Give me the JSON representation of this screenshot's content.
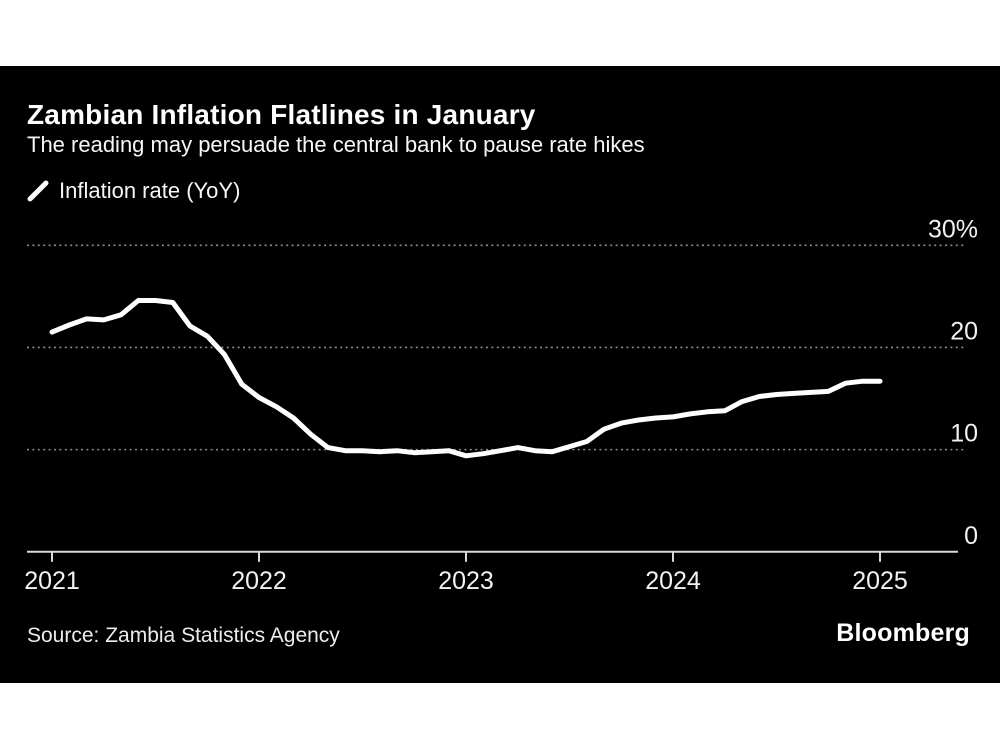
{
  "header": {
    "title": "Zambian Inflation Flatlines in January",
    "subtitle": "The reading may persuade the central bank to pause rate hikes"
  },
  "legend": {
    "marker_icon": "line-series-slash",
    "label": "Inflation rate (YoY)"
  },
  "footer": {
    "source": "Source: Zambia Statistics Agency",
    "brand": "Bloomberg"
  },
  "colors": {
    "page_background": "#ffffff",
    "card_background": "#000000",
    "line": "#ffffff",
    "grid": "#8c8c8c",
    "axis": "#d9d9d9",
    "axis_label": "#f2f2f2",
    "text": "#ffffff"
  },
  "chart_data": {
    "type": "line",
    "title": "Zambian Inflation Flatlines in January",
    "subtitle": "The reading may persuade the central bank to pause rate hikes",
    "series": [
      {
        "name": "Inflation rate (YoY)",
        "unit": "%",
        "cadence": "monthly",
        "start": "2021-01",
        "end": "2025-01",
        "values": [
          21.5,
          22.2,
          22.8,
          22.7,
          23.2,
          24.6,
          24.6,
          24.4,
          22.1,
          21.1,
          19.3,
          16.4,
          15.1,
          14.2,
          13.1,
          11.5,
          10.2,
          9.9,
          9.9,
          9.8,
          9.9,
          9.7,
          9.8,
          9.9,
          9.4,
          9.6,
          9.9,
          10.2,
          9.9,
          9.8,
          10.3,
          10.8,
          12.0,
          12.6,
          12.9,
          13.1,
          13.2,
          13.5,
          13.7,
          13.8,
          14.7,
          15.2,
          15.4,
          15.5,
          15.6,
          15.7,
          16.5,
          16.7,
          16.7
        ]
      }
    ],
    "x_ticks": [
      {
        "month_index": 0,
        "label": "2021"
      },
      {
        "month_index": 12,
        "label": "2022"
      },
      {
        "month_index": 24,
        "label": "2023"
      },
      {
        "month_index": 36,
        "label": "2024"
      },
      {
        "month_index": 48,
        "label": "2025"
      }
    ],
    "y_ticks": [
      {
        "value": 30,
        "label": "30%"
      },
      {
        "value": 20,
        "label": "20"
      },
      {
        "value": 10,
        "label": "10"
      },
      {
        "value": 0,
        "label": "0"
      }
    ],
    "ylim": [
      0,
      32
    ],
    "grid": "horizontal-dotted",
    "y_axis_side": "right",
    "legend_position": "top-left"
  }
}
